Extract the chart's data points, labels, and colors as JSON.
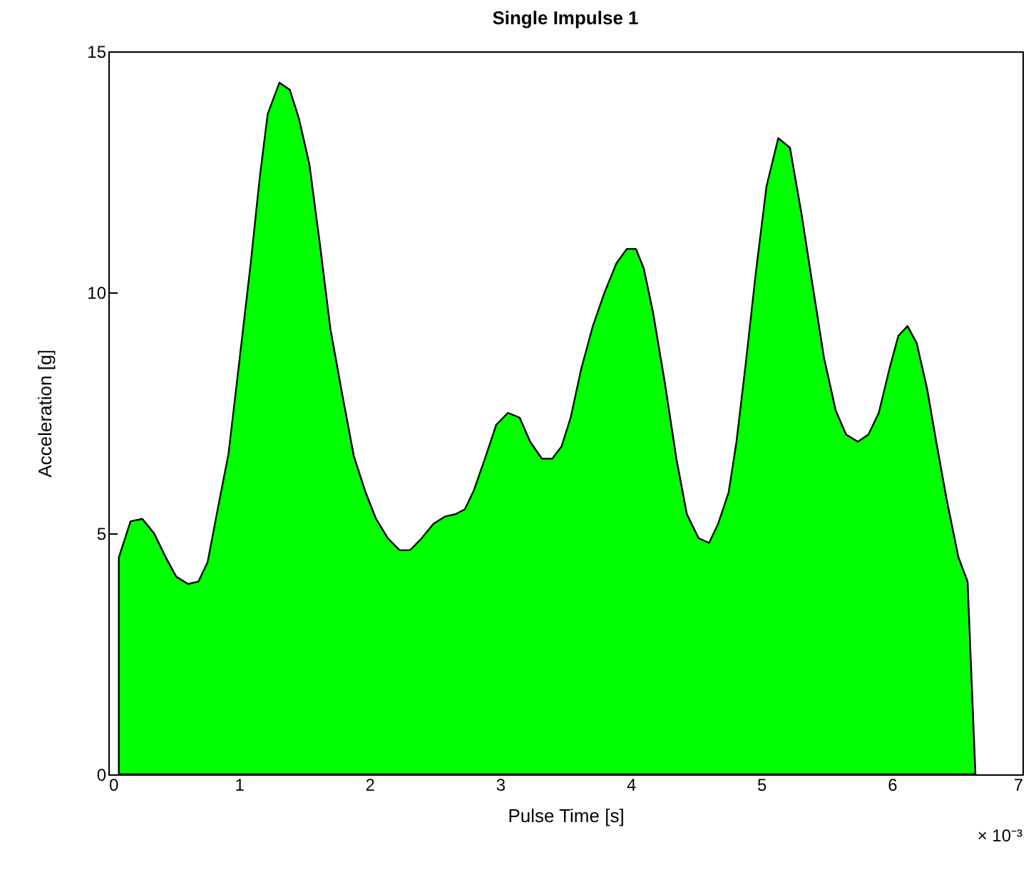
{
  "chart_data": {
    "type": "area",
    "title": "Single Impulse 1",
    "xlabel": "Pulse Time [s]",
    "ylabel": "Acceleration [g]",
    "color": "#00ff00",
    "xlim": [
      0,
      7
    ],
    "xticks": [
      0,
      1,
      2,
      3,
      4,
      5,
      6,
      7
    ],
    "ylim": [
      0,
      15
    ],
    "yticks": [
      0,
      5,
      10,
      15
    ],
    "annotations": [
      "× 10⁻³"
    ],
    "x": [
      0.08,
      0.17,
      0.26,
      0.35,
      0.44,
      0.52,
      0.61,
      0.69,
      0.76,
      0.83,
      0.92,
      1.0,
      1.09,
      1.16,
      1.22,
      1.31,
      1.39,
      1.46,
      1.54,
      1.62,
      1.7,
      1.79,
      1.88,
      1.97,
      2.05,
      2.14,
      2.23,
      2.31,
      2.4,
      2.49,
      2.58,
      2.66,
      2.73,
      2.8,
      2.89,
      2.97,
      3.06,
      3.15,
      3.23,
      3.32,
      3.4,
      3.47,
      3.54,
      3.62,
      3.71,
      3.8,
      3.89,
      3.97,
      4.04,
      4.1,
      4.17,
      4.26,
      4.35,
      4.43,
      4.52,
      4.6,
      4.67,
      4.75,
      4.81,
      4.88,
      4.96,
      5.04,
      5.13,
      5.22,
      5.31,
      5.39,
      5.48,
      5.57,
      5.65,
      5.74,
      5.82,
      5.9,
      5.98,
      6.05,
      6.12,
      6.19,
      6.27,
      6.34,
      6.42,
      6.51,
      6.58,
      6.64
    ],
    "values": [
      4.5,
      5.25,
      5.3,
      5.0,
      4.5,
      4.1,
      3.95,
      4.0,
      4.4,
      5.4,
      6.65,
      8.5,
      10.6,
      12.4,
      13.7,
      14.35,
      14.2,
      13.6,
      12.65,
      11.0,
      9.25,
      7.9,
      6.6,
      5.85,
      5.3,
      4.9,
      4.65,
      4.65,
      4.9,
      5.2,
      5.35,
      5.4,
      5.5,
      5.9,
      6.6,
      7.25,
      7.5,
      7.4,
      6.9,
      6.55,
      6.55,
      6.8,
      7.4,
      8.4,
      9.3,
      10.0,
      10.6,
      10.9,
      10.9,
      10.5,
      9.6,
      8.15,
      6.55,
      5.4,
      4.9,
      4.8,
      5.2,
      5.85,
      6.9,
      8.5,
      10.45,
      12.2,
      13.2,
      13.0,
      11.6,
      10.2,
      8.65,
      7.55,
      7.05,
      6.9,
      7.05,
      7.5,
      8.4,
      9.1,
      9.3,
      8.95,
      8.0,
      6.9,
      5.7,
      4.5,
      4.0,
      0
    ]
  }
}
